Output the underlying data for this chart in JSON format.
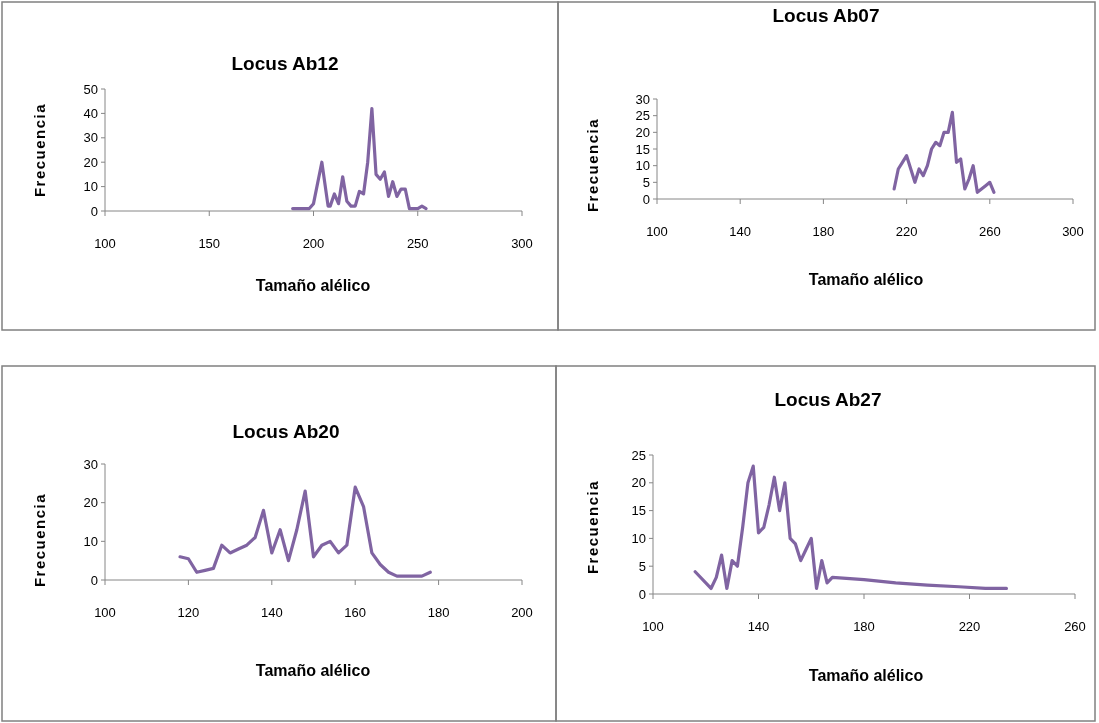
{
  "chart_data": [
    {
      "type": "line",
      "title": "Locus Ab12",
      "xlabel": "Tamaño alélico",
      "ylabel": "Frecuencia",
      "xlim": [
        100,
        300
      ],
      "xticks": [
        100,
        150,
        200,
        250,
        300
      ],
      "ylim": [
        0,
        50
      ],
      "yticks": [
        0,
        10,
        20,
        30,
        40,
        50
      ],
      "grid": false,
      "marker": "none",
      "line_style": "solid",
      "series": [
        {
          "color": "#8064a2",
          "x": [
            190,
            192,
            194,
            196,
            198,
            200,
            204,
            207,
            208,
            210,
            212,
            214,
            216,
            218,
            220,
            222,
            224,
            226,
            228,
            230,
            232,
            234,
            236,
            238,
            240,
            242,
            244,
            246,
            248,
            250,
            252,
            254
          ],
          "values": [
            1,
            1,
            1,
            1,
            1,
            3,
            20,
            2,
            2,
            7,
            3,
            14,
            4,
            2,
            2,
            8,
            7,
            20,
            42,
            15,
            13,
            16,
            6,
            12,
            6,
            9,
            9,
            1,
            1,
            1,
            2,
            1
          ]
        }
      ]
    },
    {
      "type": "line",
      "title": "Locus Ab07",
      "xlabel": "Tamaño alélico",
      "ylabel": "Frecuencia",
      "xlim": [
        100,
        300
      ],
      "xticks": [
        100,
        140,
        180,
        220,
        260,
        300
      ],
      "ylim": [
        0,
        30
      ],
      "yticks": [
        0,
        5,
        10,
        15,
        20,
        25,
        30
      ],
      "grid": false,
      "marker": "none",
      "line_style": "solid",
      "series": [
        {
          "color": "#8064a2",
          "x": [
            214,
            216,
            218,
            220,
            222,
            224,
            226,
            228,
            230,
            232,
            234,
            236,
            238,
            240,
            242,
            244,
            246,
            248,
            250,
            252,
            254,
            256,
            258,
            260,
            262
          ],
          "values": [
            3,
            9,
            11,
            13,
            9,
            5,
            9,
            7,
            10,
            15,
            17,
            16,
            20,
            20,
            26,
            11,
            12,
            3,
            6,
            10,
            2,
            3,
            4,
            5,
            2
          ]
        }
      ]
    },
    {
      "type": "line",
      "title": "Locus Ab20",
      "xlabel": "Tamaño alélico",
      "ylabel": "Frecuencia",
      "xlim": [
        100,
        200
      ],
      "xticks": [
        100,
        120,
        140,
        160,
        180,
        200
      ],
      "ylim": [
        0,
        30
      ],
      "yticks": [
        0,
        10,
        20,
        30
      ],
      "grid": false,
      "marker": "none",
      "line_style": "solid",
      "series": [
        {
          "color": "#8064a2",
          "x": [
            118,
            120,
            122,
            124,
            126,
            128,
            130,
            132,
            134,
            136,
            138,
            140,
            142,
            144,
            146,
            148,
            150,
            152,
            154,
            156,
            158,
            160,
            162,
            164,
            166,
            168,
            170,
            172,
            174,
            176,
            178
          ],
          "values": [
            6,
            5.5,
            2,
            2.5,
            3,
            9,
            7,
            8,
            9,
            11,
            18,
            7,
            13,
            5,
            13,
            23,
            6,
            9,
            10,
            7,
            9,
            24,
            19,
            7,
            4,
            2,
            1,
            1,
            1,
            1,
            2
          ]
        }
      ]
    },
    {
      "type": "line",
      "title": "Locus Ab27",
      "xlabel": "Tamaño alélico",
      "ylabel": "Frecuencia",
      "xlim": [
        100,
        260
      ],
      "xticks": [
        100,
        140,
        180,
        220,
        260
      ],
      "ylim": [
        0,
        25
      ],
      "yticks": [
        0,
        5,
        10,
        15,
        20,
        25
      ],
      "grid": false,
      "marker": "none",
      "line_style": "solid",
      "series": [
        {
          "color": "#8064a2",
          "x": [
            116,
            122,
            124,
            126,
            128,
            130,
            132,
            134,
            136,
            138,
            140,
            142,
            144,
            146,
            148,
            150,
            152,
            154,
            156,
            158,
            160,
            162,
            164,
            166,
            168,
            180,
            192,
            204,
            216,
            226,
            234
          ],
          "values": [
            4,
            1,
            3,
            7,
            1,
            6,
            5,
            12,
            20,
            23,
            11,
            12,
            16,
            21,
            15,
            20,
            10,
            9,
            6,
            8,
            10,
            1,
            6,
            2,
            3,
            2.6,
            2,
            1.6,
            1.3,
            1,
            1
          ]
        }
      ]
    }
  ]
}
